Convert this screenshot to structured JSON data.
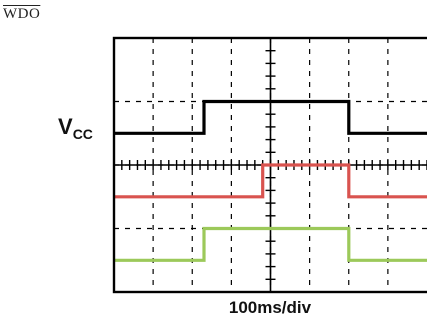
{
  "labels": {
    "wdo": "WDO",
    "vcc_main": "V",
    "vcc_sub": "CC",
    "time_div": "100ms/div"
  },
  "colors": {
    "background": "#ffffff",
    "grid": "#000000",
    "trace_vcc": "#000000",
    "trace_wdo": "#d9534f",
    "trace_third": "#9cc95a"
  },
  "chart_data": {
    "type": "line",
    "title": "",
    "xlabel": "100ms/div",
    "ylabel": "",
    "x_unit": "divisions",
    "grid": true,
    "divisions_x": 8,
    "divisions_y": 4,
    "xlim": [
      0,
      8
    ],
    "ylim": [
      0,
      4
    ],
    "series": [
      {
        "name": "Vcc",
        "color": "#000000",
        "low": 2.5,
        "high": 3.0,
        "x": [
          0,
          2.3,
          2.3,
          6.0,
          6.0,
          8.0
        ],
        "y": [
          2.5,
          2.5,
          3.0,
          3.0,
          2.5,
          2.5
        ]
      },
      {
        "name": "WDO",
        "color": "#d9534f",
        "low": 1.5,
        "high": 2.0,
        "x": [
          0,
          3.8,
          3.8,
          6.0,
          6.0,
          8.0
        ],
        "y": [
          1.5,
          1.5,
          2.0,
          2.0,
          1.5,
          1.5
        ]
      },
      {
        "name": "",
        "color": "#9cc95a",
        "low": 0.5,
        "high": 1.0,
        "x": [
          0,
          2.3,
          2.3,
          6.0,
          6.0,
          8.0
        ],
        "y": [
          0.5,
          0.5,
          1.0,
          1.0,
          0.5,
          0.5
        ]
      }
    ]
  }
}
